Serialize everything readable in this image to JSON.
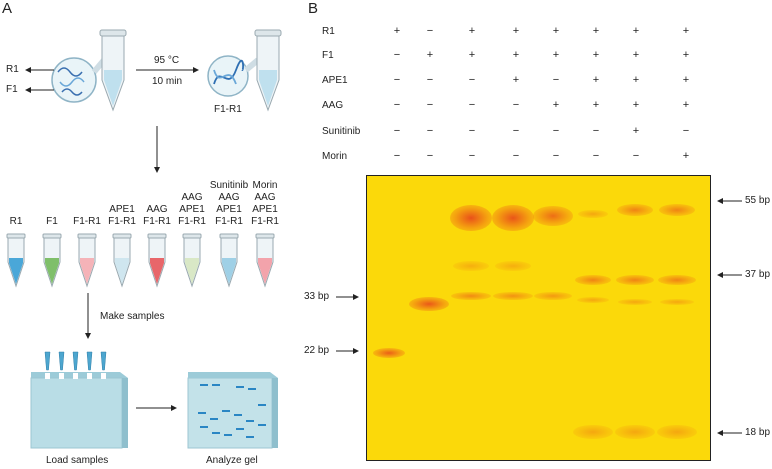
{
  "panel_a": {
    "letter": "A",
    "strand_r1": "R1",
    "strand_f1": "F1",
    "heat_temp": "95 °C",
    "heat_time": "10 min",
    "duplex_label": "F1-R1",
    "tubes": [
      {
        "lines": [
          "R1"
        ],
        "color": "#4aa7d8"
      },
      {
        "lines": [
          "F1"
        ],
        "color": "#7fbf6a"
      },
      {
        "lines": [
          "F1-R1"
        ],
        "color": "#f5b3b8"
      },
      {
        "lines": [
          "APE1",
          "F1-R1"
        ],
        "color": "#cfe6ef"
      },
      {
        "lines": [
          "AAG",
          "F1-R1"
        ],
        "color": "#e8666a"
      },
      {
        "lines": [
          "AAG",
          "APE1",
          "F1-R1"
        ],
        "color": "#d9e8c6"
      },
      {
        "lines": [
          "Sunitinib",
          "AAG",
          "APE1",
          "F1-R1"
        ],
        "color": "#9fd0e6"
      },
      {
        "lines": [
          "Morin",
          "AAG",
          "APE1",
          "F1-R1"
        ],
        "color": "#f3a3ab"
      }
    ],
    "make_samples": "Make samples",
    "load_samples": "Load samples",
    "analyze_gel": "Analyze gel"
  },
  "panel_b": {
    "letter": "B",
    "conditions": [
      {
        "name": "R1",
        "signs": [
          "+",
          "−",
          "+",
          "+",
          "+",
          "+",
          "+",
          "+"
        ]
      },
      {
        "name": "F1",
        "signs": [
          "−",
          "+",
          "+",
          "+",
          "+",
          "+",
          "+",
          "+"
        ]
      },
      {
        "name": "APE1",
        "signs": [
          "−",
          "−",
          "−",
          "+",
          "−",
          "+",
          "+",
          "+"
        ]
      },
      {
        "name": "AAG",
        "signs": [
          "−",
          "−",
          "−",
          "−",
          "+",
          "+",
          "+",
          "+"
        ]
      },
      {
        "name": "Sunitinib",
        "signs": [
          "−",
          "−",
          "−",
          "−",
          "−",
          "−",
          "+",
          "−"
        ]
      },
      {
        "name": "Morin",
        "signs": [
          "−",
          "−",
          "−",
          "−",
          "−",
          "−",
          "−",
          "+"
        ]
      }
    ],
    "markers_left": [
      "33 bp",
      "22 bp"
    ],
    "markers_right": [
      "55 bp",
      "37 bp",
      "18 bp"
    ],
    "gel_color": "#fbd90a",
    "band_color": "#e84a1a"
  }
}
